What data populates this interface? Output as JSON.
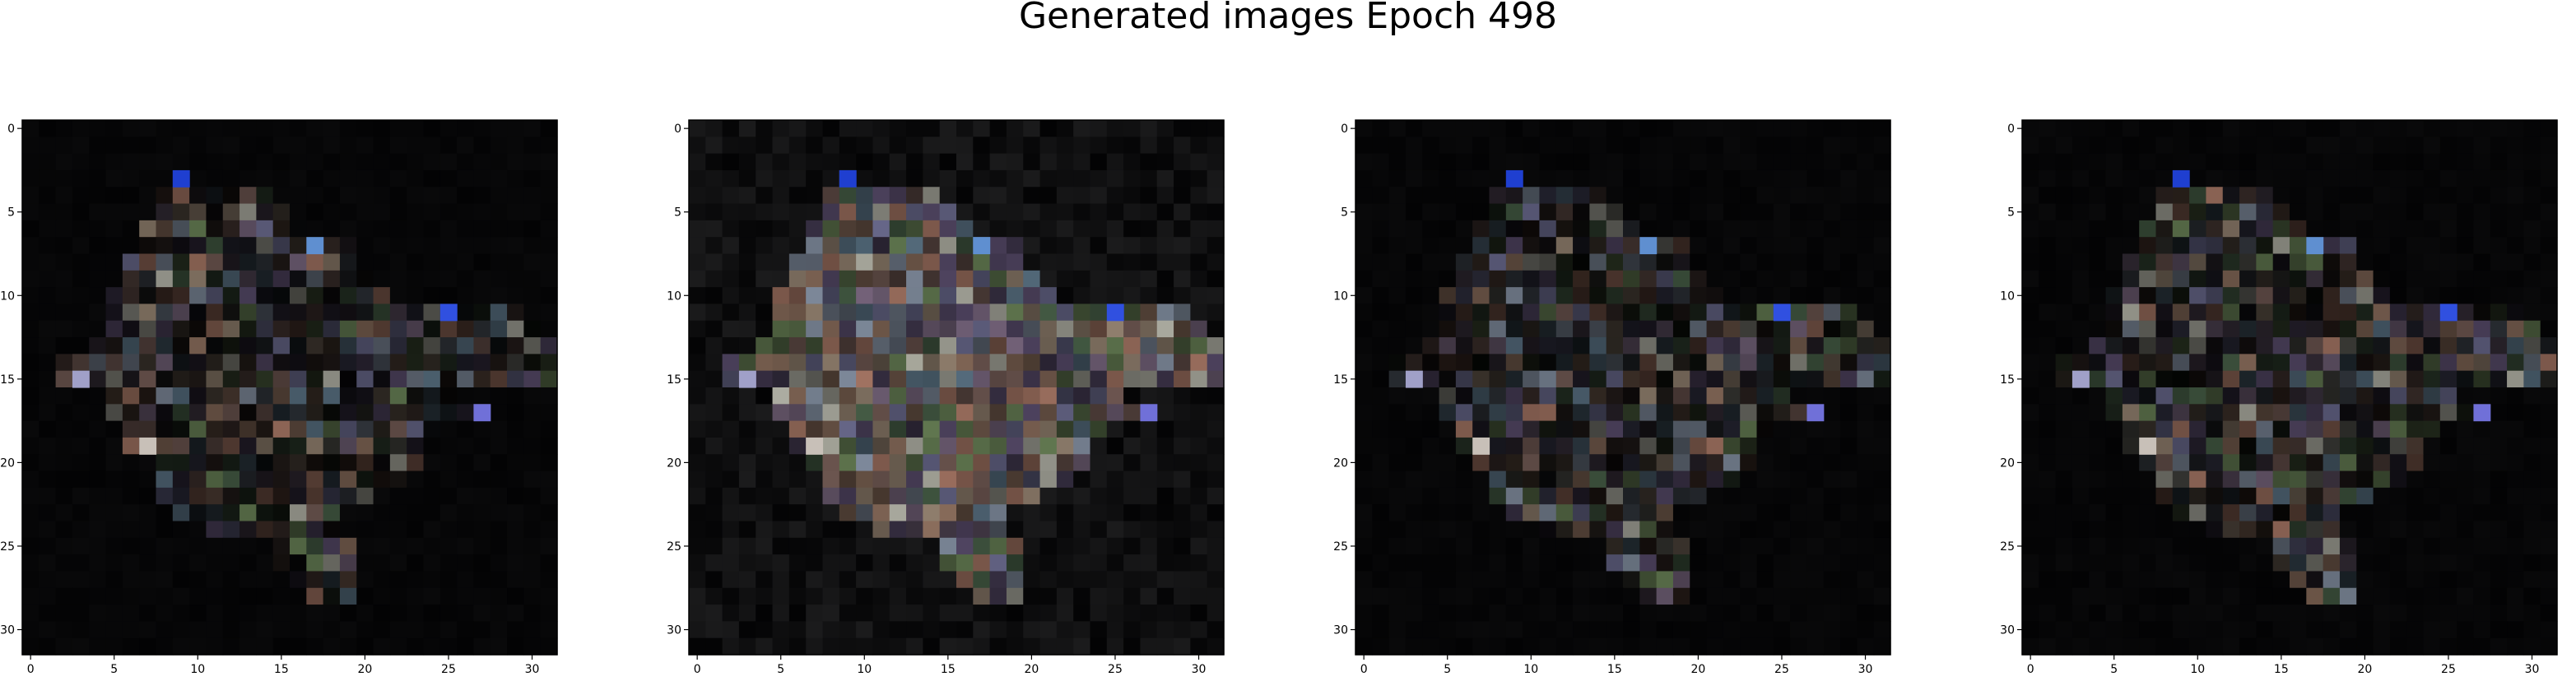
{
  "title": "Generated images Epoch 498",
  "chart_data": [
    {
      "type": "heatmap",
      "image": "generated-image-1",
      "xticks": [
        "0",
        "5",
        "10",
        "15",
        "20",
        "25",
        "30"
      ],
      "yticks": [
        "0",
        "5",
        "10",
        "15",
        "20",
        "25",
        "30"
      ],
      "xlim": [
        -0.5,
        31.5
      ],
      "ylim": [
        31.5,
        -0.5
      ],
      "grid": false
    },
    {
      "type": "heatmap",
      "image": "generated-image-2",
      "xticks": [
        "0",
        "5",
        "10",
        "15",
        "20",
        "25",
        "30"
      ],
      "yticks": [
        "0",
        "5",
        "10",
        "15",
        "20",
        "25",
        "30"
      ],
      "xlim": [
        -0.5,
        31.5
      ],
      "ylim": [
        31.5,
        -0.5
      ],
      "grid": false
    },
    {
      "type": "heatmap",
      "image": "generated-image-3",
      "xticks": [
        "0",
        "5",
        "10",
        "15",
        "20",
        "25",
        "30"
      ],
      "yticks": [
        "0",
        "5",
        "10",
        "15",
        "20",
        "25",
        "30"
      ],
      "xlim": [
        -0.5,
        31.5
      ],
      "ylim": [
        31.5,
        -0.5
      ],
      "grid": false
    },
    {
      "type": "heatmap",
      "image": "generated-image-4",
      "xticks": [
        "0",
        "5",
        "10",
        "15",
        "20",
        "25",
        "30"
      ],
      "yticks": [
        "0",
        "5",
        "10",
        "15",
        "20",
        "25",
        "30"
      ],
      "xlim": [
        -0.5,
        31.5
      ],
      "ylim": [
        31.5,
        -0.5
      ],
      "grid": false
    }
  ]
}
